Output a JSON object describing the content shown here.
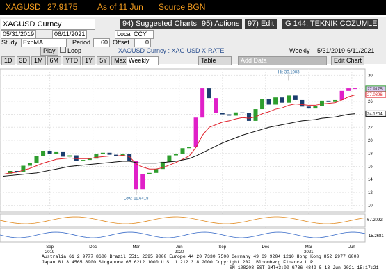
{
  "header": {
    "ticker": "XAGUSD",
    "price": "27.9175",
    "as_of": "As of 11 Jun",
    "source": "Source BGN"
  },
  "toolbar": {
    "security": "XAGUSD Curncy",
    "suggested": "94) Suggested Charts",
    "actions": "95) Actions",
    "edit": "97) Edit",
    "template": "G 144: TEKNIK COZUMLE...",
    "start": "05/31/2019",
    "end": "06/11/2021",
    "currency": "Local CCY",
    "study_label": "Study",
    "study": "ExpMA",
    "period_label": "Period",
    "period": "60",
    "offset_label": "Offset",
    "offset": "0",
    "play": "Play",
    "loop": "Loop",
    "description": "XAGUSD Curncy : XAG-USD X-RATE",
    "frequency": "Weekly",
    "range": "5/31/2019-6/11/2021",
    "periods": [
      "1D",
      "3D",
      "1M",
      "6M",
      "YTD",
      "1Y",
      "5Y",
      "Max"
    ],
    "freq_select": "Weekly",
    "table": "Table",
    "add_data": "Add Data",
    "edit_chart": "Edit Chart"
  },
  "chart_data": {
    "type": "candlestick",
    "x": [
      0,
      2,
      4,
      6,
      8,
      10,
      12,
      14,
      16,
      18,
      20,
      22,
      24,
      26,
      28,
      30,
      32,
      34,
      36,
      38,
      40,
      42,
      44,
      46,
      48,
      50,
      52,
      54,
      56,
      58,
      60,
      62,
      64,
      66,
      68,
      70,
      72,
      74,
      76,
      78,
      80,
      82,
      84,
      86,
      88,
      90,
      92,
      94,
      96,
      98,
      100,
      102,
      104,
      106
    ],
    "series": [
      {
        "color": "#2e9e2e",
        "last": 27.9175,
        "values": [
          14.9,
          15.3,
          15.2,
          16.1,
          16.5,
          17.6,
          18.4,
          17.9,
          18.3,
          17.5,
          17.7,
          16.9,
          17.0,
          17.2,
          17.9,
          18.1,
          17.8,
          17.6,
          17.9,
          16.8,
          12.5,
          14.8,
          15.0,
          15.6,
          16.7,
          17.7,
          17.9,
          18.8,
          19.0,
          23.5,
          28.0,
          26.5,
          24.2,
          24.0,
          23.8,
          24.3,
          24.2,
          23.0,
          24.8,
          26.3,
          25.5,
          26.6,
          25.8,
          26.9,
          26.2,
          25.2,
          24.9,
          25.3,
          26.1,
          25.9,
          26.2,
          27.6,
          28.0,
          27.9
        ]
      },
      {
        "color": "#e0202a",
        "last": 27.0396,
        "values": [
          14.8,
          15.0,
          15.1,
          15.4,
          15.7,
          16.1,
          16.5,
          16.8,
          17.1,
          17.2,
          17.3,
          17.2,
          17.2,
          17.2,
          17.4,
          17.5,
          17.6,
          17.6,
          17.7,
          17.5,
          16.4,
          15.9,
          15.6,
          15.6,
          15.8,
          16.2,
          16.6,
          17.1,
          17.6,
          18.9,
          20.8,
          22.0,
          22.4,
          22.8,
          23.0,
          23.3,
          23.5,
          23.4,
          23.6,
          24.1,
          24.4,
          24.8,
          25.0,
          25.4,
          25.6,
          25.5,
          25.4,
          25.4,
          25.6,
          25.7,
          25.8,
          26.2,
          26.7,
          27.0
        ]
      },
      {
        "color": "#111111",
        "last": 24.1204,
        "values": [
          14.5,
          14.6,
          14.7,
          14.8,
          14.9,
          15.0,
          15.2,
          15.4,
          15.6,
          15.8,
          16.0,
          16.1,
          16.2,
          16.3,
          16.4,
          16.5,
          16.6,
          16.7,
          16.8,
          16.8,
          16.6,
          16.5,
          16.5,
          16.5,
          16.6,
          16.7,
          16.8,
          17.0,
          17.2,
          17.6,
          18.1,
          18.6,
          19.1,
          19.6,
          20.0,
          20.4,
          20.8,
          21.1,
          21.4,
          21.7,
          22.0,
          22.2,
          22.4,
          22.6,
          22.8,
          23.0,
          23.1,
          23.2,
          23.4,
          23.5,
          23.6,
          23.8,
          24.0,
          24.1
        ]
      }
    ],
    "annotations": [
      {
        "label": "Hi: 30.1003",
        "x": 86,
        "value": 30.1003
      },
      {
        "label": "Low: 11.6418",
        "x": 40,
        "value": 11.6418
      }
    ],
    "xlim": [
      -1,
      109
    ],
    "ylim": [
      9,
      31
    ],
    "yticks": [
      10,
      12,
      14,
      16,
      18,
      20,
      22,
      24,
      26,
      28,
      30
    ],
    "xticks": [
      {
        "value": 14,
        "label": "Sep"
      },
      {
        "value": 27,
        "label": "Dec"
      },
      {
        "value": 40,
        "label": "Mar"
      },
      {
        "value": 53,
        "label": "Jun"
      },
      {
        "value": 66,
        "label": "Sep"
      },
      {
        "value": 79,
        "label": "Dec"
      },
      {
        "value": 92,
        "label": "Mar"
      },
      {
        "value": 105,
        "label": "Jun"
      }
    ],
    "year_labels": [
      {
        "value": 14,
        "label": "2019"
      },
      {
        "value": 53,
        "label": "2020"
      },
      {
        "value": 92,
        "label": "2021"
      }
    ],
    "indicator_labels": [
      "67.2092",
      "-15.2681"
    ]
  },
  "footer": [
    "Australia 61 2 9777 8600 Brazil 5511 2395 9000 Europe 44 20 7330 7500 Germany 49 69 9204 1210 Hong Kong 852 2977 6000",
    "Japan 81 3 4565 8900       Singapore 65 6212 1000       U.S. 1 212 318 2000       Copyright 2021 Bloomberg Finance L.P.",
    "SN 108208 EST  GMT+3:00 G736-4849-5 13-Jun-2021 15:17:21"
  ]
}
